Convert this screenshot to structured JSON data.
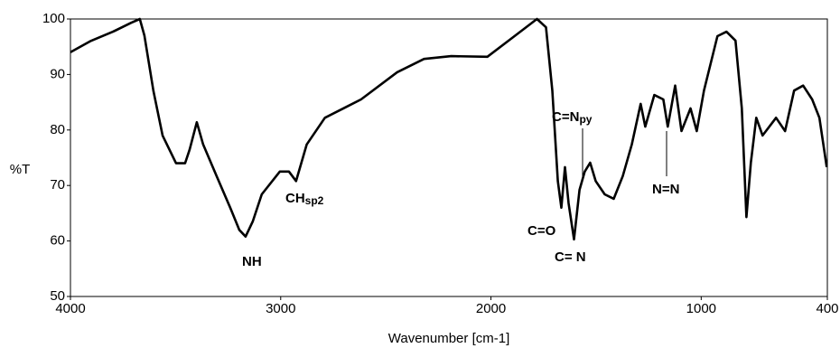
{
  "chart_data": {
    "type": "line",
    "xlabel": "Wavenumber [cm-1]",
    "ylabel": "%T",
    "xlim": [
      4000,
      400
    ],
    "xticks": [
      4000,
      3000,
      2000,
      1000,
      400
    ],
    "ylim": [
      50,
      100
    ],
    "yticks": [
      50,
      60,
      70,
      80,
      90,
      100
    ],
    "grid": false,
    "series": [
      {
        "color": "#000000",
        "x": [
          4000,
          3906,
          3798,
          3712,
          3670,
          3648,
          3605,
          3562,
          3498,
          3455,
          3433,
          3399,
          3369,
          3305,
          3240,
          3197,
          3167,
          3133,
          3090,
          3004,
          2961,
          2927,
          2876,
          2790,
          2618,
          2446,
          2318,
          2189,
          2017,
          1888,
          1781,
          1738,
          1708,
          1682,
          1665,
          1648,
          1631,
          1605,
          1579,
          1554,
          1528,
          1502,
          1459,
          1416,
          1373,
          1330,
          1288,
          1266,
          1223,
          1180,
          1159,
          1124,
          1094,
          1051,
          1021,
          987,
          923,
          880,
          837,
          807,
          785,
          764,
          738,
          708,
          644,
          601,
          558,
          515,
          472,
          438,
          403
        ],
        "values": [
          94,
          96,
          97.7,
          99.3,
          100,
          97,
          87,
          79,
          74,
          74,
          76.5,
          81.4,
          77.4,
          71.7,
          66,
          62,
          60.8,
          63.5,
          68.4,
          72.5,
          72.5,
          70.8,
          77.4,
          82.2,
          85.5,
          90.4,
          92.8,
          93.3,
          93.2,
          96.9,
          100,
          98.5,
          87.1,
          70.8,
          66,
          73.3,
          66.8,
          60.3,
          69.2,
          72.5,
          74.1,
          70.8,
          68.4,
          67.6,
          71.7,
          77.4,
          84.7,
          80.6,
          86.3,
          85.5,
          80.6,
          88,
          79.8,
          83.9,
          79.8,
          87.1,
          96.9,
          97.7,
          96.1,
          83.9,
          64.3,
          74.1,
          82.2,
          79,
          82.2,
          79.8,
          87.1,
          88,
          85.5,
          82.2,
          73.3
        ]
      }
    ],
    "annotations": [
      {
        "text": "NH"
      },
      {
        "text": "CH",
        "subscript": "sp2"
      },
      {
        "text": "C=O"
      },
      {
        "text": "C= N"
      },
      {
        "text": "C=N",
        "subscript": "py"
      },
      {
        "text": "N=N"
      }
    ]
  }
}
